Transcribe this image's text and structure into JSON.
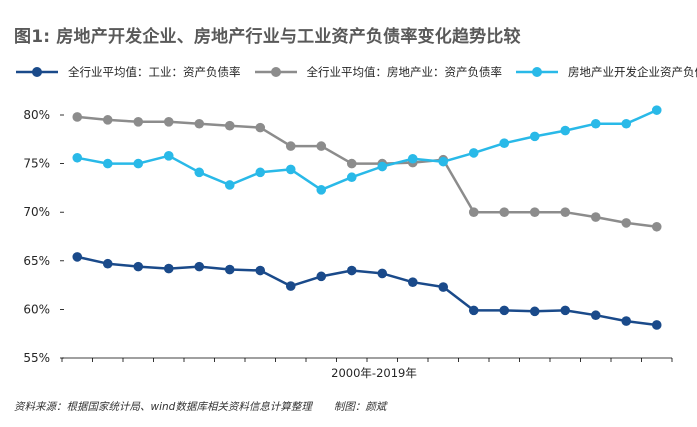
{
  "title": "图1: 房地产开发企业、房地产行业与工业资产负债率变化趋势比较",
  "source_note": "资料来源：根据国家统计局、wind数据库相关资料信息计算整理",
  "author_note": "制图：颜斌",
  "colors": {
    "industry": "#1a4a8a",
    "real_estate": "#8c8c8c",
    "developer": "#29b9e8",
    "axis": "#000000",
    "text": "#262626"
  },
  "chart_data": {
    "type": "line",
    "title": "图1: 房地产开发企业、房地产行业与工业资产负债率变化趋势比较",
    "xlabel": "2000年-2019年",
    "ylabel": "",
    "ylim": [
      55,
      80
    ],
    "yticks": [
      "80%",
      "75%",
      "70%",
      "65%",
      "60%",
      "55%"
    ],
    "ytick_values": [
      80,
      75,
      70,
      65,
      60,
      55
    ],
    "grid": false,
    "legend_position": "top",
    "x": [
      2000,
      2001,
      2002,
      2003,
      2004,
      2005,
      2006,
      2007,
      2008,
      2009,
      2010,
      2011,
      2012,
      2013,
      2014,
      2015,
      2016,
      2017,
      2018,
      2019
    ],
    "series": [
      {
        "name": "全行业平均值：工业：资产负债率",
        "color_key": "industry",
        "values": [
          65.4,
          64.7,
          64.4,
          64.2,
          64.4,
          64.1,
          64.0,
          62.4,
          63.4,
          64.0,
          63.7,
          62.8,
          62.3,
          59.9,
          59.9,
          59.8,
          59.9,
          59.4,
          58.8,
          58.4
        ]
      },
      {
        "name": "全行业平均值：房地产业：资产负债率",
        "color_key": "real_estate",
        "values": [
          79.8,
          79.5,
          79.3,
          79.3,
          79.1,
          78.9,
          78.7,
          76.8,
          76.8,
          75.0,
          75.0,
          75.1,
          75.4,
          70.0,
          70.0,
          70.0,
          70.0,
          69.5,
          68.9,
          68.5
        ]
      },
      {
        "name": "房地产业开发企业资产负债率",
        "color_key": "developer",
        "values": [
          75.6,
          75.0,
          75.0,
          75.8,
          74.1,
          72.8,
          74.1,
          74.4,
          72.3,
          73.6,
          74.7,
          75.5,
          75.2,
          76.1,
          77.1,
          77.8,
          78.4,
          79.1,
          79.1,
          80.5
        ]
      }
    ]
  }
}
